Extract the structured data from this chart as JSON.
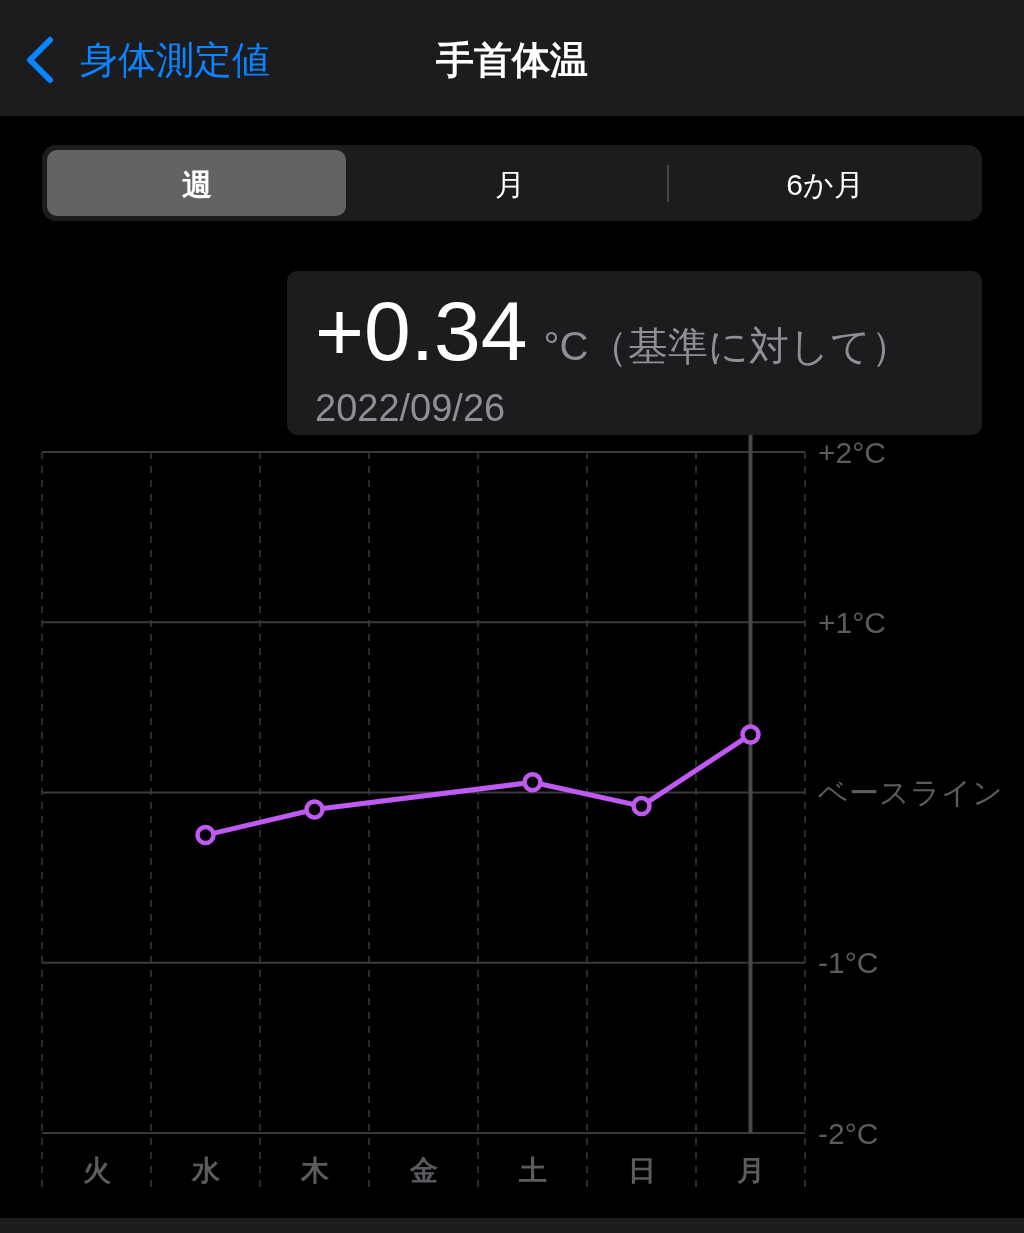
{
  "chart_data": {
    "type": "line",
    "title": "手首体温",
    "categories": [
      "火",
      "水",
      "木",
      "金",
      "土",
      "日",
      "月"
    ],
    "values": [
      null,
      -0.25,
      -0.1,
      null,
      0.06,
      -0.08,
      0.34
    ],
    "color": "#bf5af2",
    "ylim": [
      -2,
      2
    ],
    "yticks": [
      {
        "value": 2,
        "label": "+2°C"
      },
      {
        "value": 1,
        "label": "+1°C"
      },
      {
        "value": 0,
        "label": "ベースライン"
      },
      {
        "value": -1,
        "label": "-1°C"
      },
      {
        "value": -2,
        "label": "-2°C"
      }
    ],
    "grid": true,
    "marker": "circle",
    "line_style": "solid",
    "ref_lines": [
      {
        "axis": "x",
        "value": "月",
        "color": "#48484a"
      }
    ],
    "annotations": [
      "身体測定値",
      "週",
      "月",
      "6か月",
      "+0.34",
      "°C（基準に対して）",
      "2022/09/26"
    ]
  }
}
